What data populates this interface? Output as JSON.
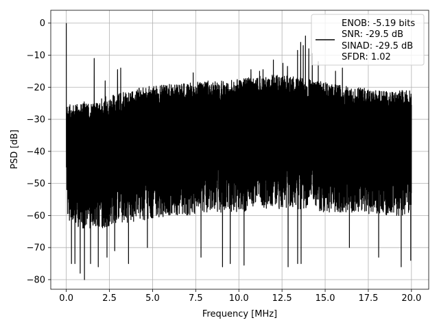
{
  "chart_data": {
    "type": "line",
    "xlabel": "Frequency [MHz]",
    "ylabel": "PSD [dB]",
    "xlim": [
      -0.9,
      21.0
    ],
    "ylim": [
      -83.0,
      4.0
    ],
    "xticks": [
      0.0,
      2.5,
      5.0,
      7.5,
      10.0,
      12.5,
      15.0,
      17.5,
      20.0
    ],
    "xtick_labels": [
      "0.0",
      "2.5",
      "5.0",
      "7.5",
      "10.0",
      "12.5",
      "15.0",
      "17.5",
      "20.0"
    ],
    "yticks": [
      0,
      -10,
      -20,
      -30,
      -40,
      -50,
      -60,
      -70,
      -80
    ],
    "ytick_labels": [
      "0",
      "−10",
      "−20",
      "−30",
      "−40",
      "−50",
      "−60",
      "−70",
      "−80"
    ],
    "grid": true,
    "legend_position": "top-right",
    "line_color": "#000000",
    "series": [
      {
        "legend_lines": [
          "ENOB: -5.19 bits",
          "SNR: -29.5 dB",
          "SINAD: -29.5 dB",
          "SFDR: 1.02"
        ],
        "upper_envelope": {
          "x": [
            0.0,
            0.05,
            0.3,
            1.0,
            1.5,
            2.0,
            2.5,
            3.0,
            4.0,
            5.0,
            6.0,
            7.0,
            8.0,
            9.0,
            10.0,
            10.5,
            11.0,
            11.5,
            12.0,
            12.5,
            13.0,
            13.5,
            14.0,
            14.5,
            15.0,
            15.5,
            16.0,
            16.5,
            17.0,
            17.5,
            18.0,
            18.5,
            19.0,
            19.5,
            20.0
          ],
          "y": [
            -26,
            -26,
            -25,
            -24.5,
            -24,
            -23.5,
            -22.5,
            -22,
            -20.5,
            -19.5,
            -19,
            -18.5,
            -18,
            -18,
            -17.5,
            -17,
            -16.5,
            -16.5,
            -16,
            -16.5,
            -16.5,
            -17,
            -17.5,
            -18,
            -18.5,
            -19,
            -19.5,
            -20,
            -20,
            -20.5,
            -21,
            -21,
            -21,
            -21,
            -21
          ]
        },
        "lower_envelope": {
          "x": [
            0.0,
            0.05,
            0.3,
            1.0,
            2.0,
            3.0,
            4.0,
            5.0,
            6.0,
            7.0,
            8.0,
            9.0,
            10.0,
            11.0,
            12.0,
            13.0,
            14.0,
            15.0,
            16.0,
            17.0,
            18.0,
            19.0,
            20.0
          ],
          "y": [
            -43,
            -60,
            -63,
            -64,
            -64,
            -63,
            -62,
            -61,
            -60,
            -60,
            -59,
            -59,
            -59,
            -58,
            -58,
            -58,
            -58,
            -59,
            -59,
            -59,
            -60,
            -60,
            -60
          ]
        },
        "spikes": [
          {
            "x": 0.0,
            "y": 0.0
          },
          {
            "x": 1.62,
            "y": -11.0
          },
          {
            "x": 2.25,
            "y": -18.0
          },
          {
            "x": 2.97,
            "y": -14.5
          },
          {
            "x": 3.15,
            "y": -14.0
          },
          {
            "x": 7.35,
            "y": -15.5
          },
          {
            "x": 10.7,
            "y": -14.5
          },
          {
            "x": 11.2,
            "y": -15.0
          },
          {
            "x": 11.4,
            "y": -14.5
          },
          {
            "x": 12.0,
            "y": -11.5
          },
          {
            "x": 12.55,
            "y": -12.5
          },
          {
            "x": 12.82,
            "y": -13.5
          },
          {
            "x": 13.4,
            "y": -8.5
          },
          {
            "x": 13.58,
            "y": -6.0
          },
          {
            "x": 13.73,
            "y": -7.0
          },
          {
            "x": 13.86,
            "y": -4.0
          },
          {
            "x": 14.05,
            "y": -8.0
          },
          {
            "x": 14.25,
            "y": -9.5
          },
          {
            "x": 14.6,
            "y": -12.0
          },
          {
            "x": 15.6,
            "y": -15.0
          },
          {
            "x": 16.0,
            "y": -14.0
          }
        ],
        "dips": [
          {
            "x": 0.3,
            "y": -75.0
          },
          {
            "x": 0.5,
            "y": -75.0
          },
          {
            "x": 0.8,
            "y": -78.0
          },
          {
            "x": 1.05,
            "y": -80.0
          },
          {
            "x": 1.4,
            "y": -75.0
          },
          {
            "x": 1.85,
            "y": -76.0
          },
          {
            "x": 2.35,
            "y": -73.0
          },
          {
            "x": 2.8,
            "y": -71.0
          },
          {
            "x": 3.6,
            "y": -75.0
          },
          {
            "x": 4.7,
            "y": -70.0
          },
          {
            "x": 7.8,
            "y": -73.0
          },
          {
            "x": 9.05,
            "y": -76.0
          },
          {
            "x": 9.5,
            "y": -75.0
          },
          {
            "x": 10.3,
            "y": -75.5
          },
          {
            "x": 12.85,
            "y": -76.0
          },
          {
            "x": 13.4,
            "y": -75.0
          },
          {
            "x": 13.6,
            "y": -75.0
          },
          {
            "x": 16.4,
            "y": -70.0
          },
          {
            "x": 18.1,
            "y": -73.0
          },
          {
            "x": 19.4,
            "y": -76.0
          },
          {
            "x": 19.95,
            "y": -74.0
          }
        ]
      }
    ]
  }
}
